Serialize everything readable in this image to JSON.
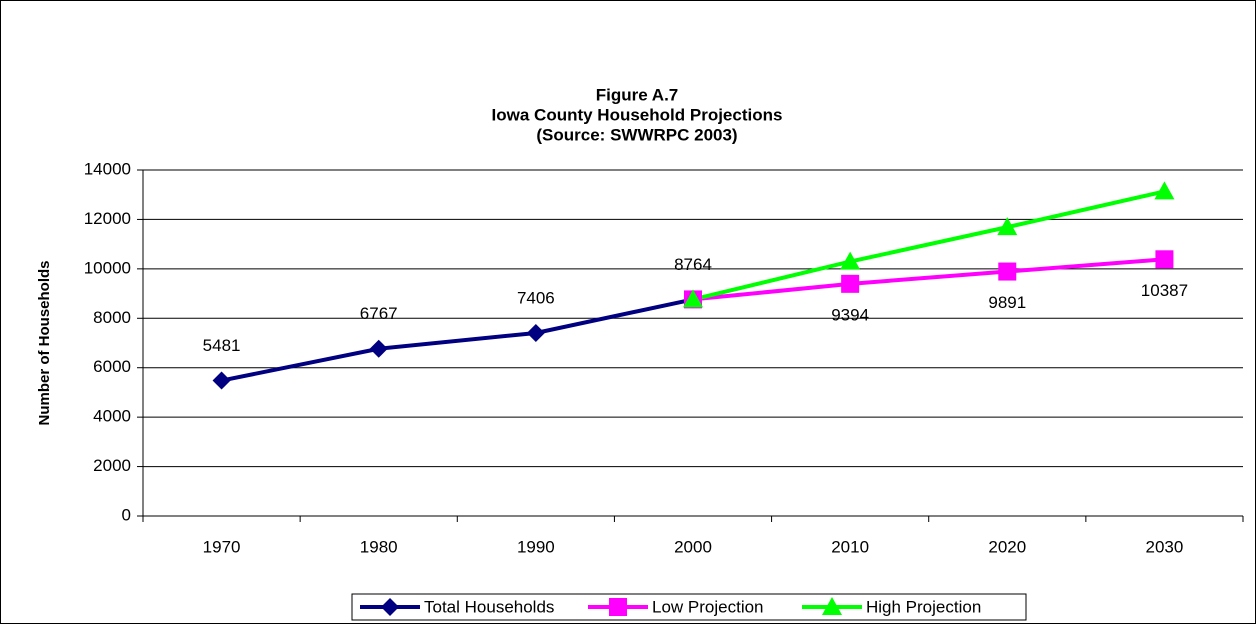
{
  "chart_data": {
    "type": "line",
    "title": [
      "Figure A.7",
      "Iowa County Household Projections",
      "(Source:  SWWRPC 2003)"
    ],
    "y_label": "Number of Households",
    "categories": [
      "1970",
      "1980",
      "1990",
      "2000",
      "2010",
      "2020",
      "2030"
    ],
    "series": [
      {
        "name": "Total Households",
        "color": "#000080",
        "values": [
          5481,
          6767,
          7406,
          8764,
          null,
          null,
          null
        ]
      },
      {
        "name": "Low Projection",
        "color": "#ff00ff",
        "values": [
          null,
          null,
          null,
          8764,
          9394,
          9891,
          10387
        ]
      },
      {
        "name": "High Projection",
        "color": "#00ff00",
        "values": [
          null,
          null,
          null,
          8764,
          10293,
          11688,
          13134
        ]
      }
    ],
    "ylim": [
      0,
      14000
    ],
    "yticks": [
      0,
      2000,
      4000,
      6000,
      8000,
      10000,
      12000,
      14000
    ],
    "grid": true,
    "legend": "bottom"
  }
}
